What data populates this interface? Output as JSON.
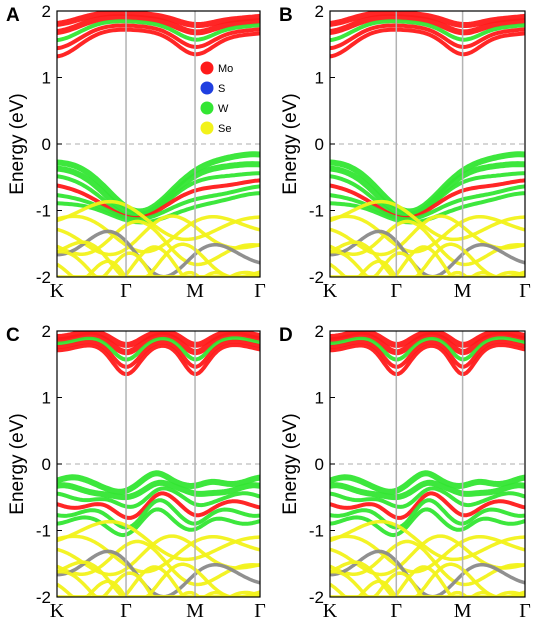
{
  "chart_data": [
    {
      "panel": "A",
      "type": "line",
      "ylabel": "Energy (eV)",
      "ylim": [
        -2,
        2
      ],
      "yticks": [
        "-2",
        "-1",
        "0",
        "1",
        "2"
      ],
      "xticks": [
        "K",
        "Γ",
        "M",
        "Γ"
      ],
      "fermi_level": 0,
      "legend": [
        {
          "name": "Mo",
          "color": "#ff1a1a"
        },
        {
          "name": "S",
          "color": "#1f3fe0"
        },
        {
          "name": "W",
          "color": "#33e633"
        },
        {
          "name": "Se",
          "color": "#f2f21a"
        }
      ],
      "conduction": {
        "min": 1.3,
        "max": 2.0,
        "dip_at": [
          "K",
          "M"
        ]
      },
      "valence": {
        "top": -0.25,
        "top_at": "K",
        "crossing_near": "Γ",
        "crossing_energy": -0.95
      }
    },
    {
      "panel": "B",
      "type": "line",
      "ylabel": "Energy (eV)",
      "ylim": [
        -2,
        2
      ],
      "yticks": [
        "-2",
        "-1",
        "0",
        "1",
        "2"
      ],
      "xticks": [
        "K",
        "Γ",
        "M",
        "Γ"
      ],
      "fermi_level": 0,
      "conduction": {
        "min": 1.35,
        "max": 2.0,
        "dip_at": [
          "K",
          "M"
        ]
      },
      "valence": {
        "top": -0.25,
        "top_at": "K",
        "crossing_near": "Γ",
        "crossing_energy": -0.95
      }
    },
    {
      "panel": "C",
      "type": "line",
      "ylabel": "Energy (eV)",
      "ylim": [
        -2,
        2
      ],
      "yticks": [
        "-2",
        "-1",
        "0",
        "1",
        "2"
      ],
      "xticks": [
        "K",
        "Γ",
        "M",
        "Γ"
      ],
      "fermi_level": 0,
      "conduction": {
        "min": 1.3,
        "max": 2.0,
        "dip_at": [
          "Γ",
          "M"
        ]
      },
      "valence": {
        "top": -0.3,
        "top_at": "K",
        "crossing_near": "Γ",
        "crossing_energy": -0.75
      }
    },
    {
      "panel": "D",
      "type": "line",
      "ylabel": "Energy (eV)",
      "ylim": [
        -2,
        2
      ],
      "yticks": [
        "-2",
        "-1",
        "0",
        "1",
        "2"
      ],
      "xticks": [
        "K",
        "Γ",
        "M",
        "Γ"
      ],
      "fermi_level": 0,
      "conduction": {
        "min": 1.3,
        "max": 2.0,
        "dip_at": [
          "Γ",
          "M"
        ]
      },
      "valence": {
        "top": -0.3,
        "top_at": "K",
        "crossing_near": "Γ",
        "crossing_energy": -0.75
      }
    }
  ]
}
